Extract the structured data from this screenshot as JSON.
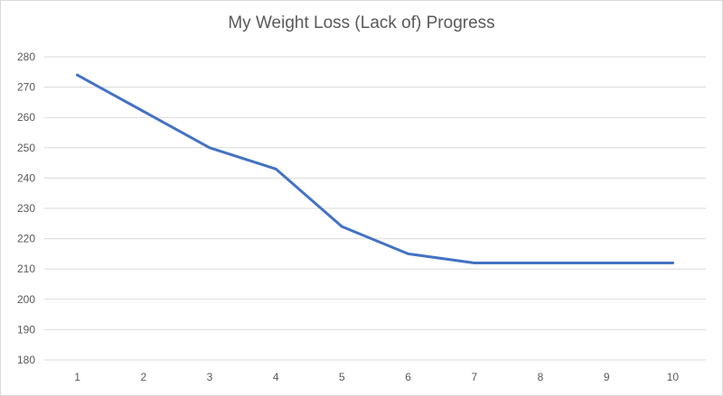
{
  "chart_data": {
    "type": "line",
    "title": "My Weight Loss (Lack of) Progress",
    "xlabel": "",
    "ylabel": "",
    "x": [
      1,
      2,
      3,
      4,
      5,
      6,
      7,
      8,
      9,
      10
    ],
    "series": [
      {
        "values": [
          274,
          262,
          250,
          243,
          224,
          215,
          212,
          212,
          212,
          212
        ]
      }
    ],
    "ylim": [
      180,
      280
    ],
    "yticks": [
      180,
      190,
      200,
      210,
      220,
      230,
      240,
      250,
      260,
      270,
      280
    ],
    "grid": true,
    "legend": "none",
    "colors": {
      "line": "#4472c4",
      "grid": "#d9d9d9",
      "text": "#595959"
    }
  }
}
